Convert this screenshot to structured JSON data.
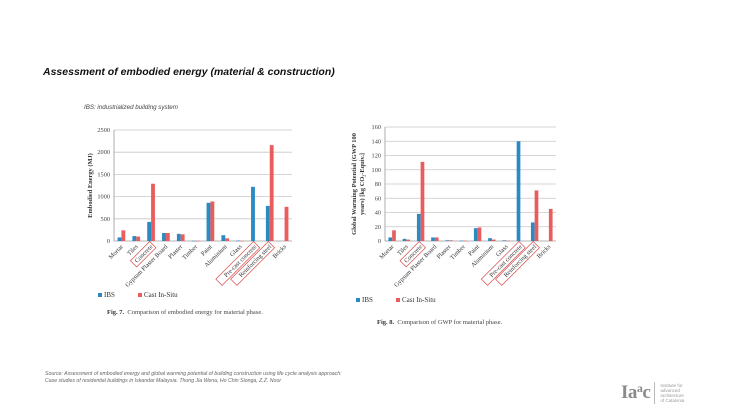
{
  "slide": {
    "title": "Assessment of embodied energy (material & construction)",
    "subnote": "IBS: industrialized building system",
    "source_line1": "Source: Assessment of embodied energy and global warming potential of building construction using life cycle analysis approach:",
    "source_line2": " Case studies of residential buildings in Iskandar Malaysia. Thong Jia Wena, Ho Chin Sionga, Z.Z. Noor",
    "logo": {
      "mark_main": "Ia",
      "mark_sup1": "a",
      "mark_c": "c",
      "text_lines": [
        "Institute for",
        "advanced",
        "architecture",
        "of Catalonia"
      ]
    }
  },
  "colors": {
    "ibs": "#2a8ac4",
    "cast_in_situ": "#ea5d5d",
    "highlight_box": "#d94a4a",
    "grid": "#c8c8c8"
  },
  "chart_data": [
    {
      "type": "bar",
      "title": "",
      "caption_label": "Fig. 7.",
      "caption_text": "Comparison of embodied energy for material phase.",
      "xlabel": "",
      "ylabel": "Embodied Energy (MJ)",
      "ylim": [
        0,
        2500
      ],
      "yticks": [
        0,
        500,
        1000,
        1500,
        2000,
        2500
      ],
      "grid": true,
      "legend": "bottom-left",
      "categories": [
        "Mortar",
        "Tiles",
        "Concrete",
        "Gypsum Plaster Board",
        "Plaster",
        "Timber",
        "Paint",
        "Aluminium",
        "Glass",
        "Pre-cast concrete",
        "Reinforcing steel",
        "Bricks"
      ],
      "highlighted_categories": [
        "Concrete",
        "Pre-cast concrete",
        "Reinforcing steel"
      ],
      "series": [
        {
          "name": "IBS",
          "values": [
            80,
            110,
            430,
            180,
            160,
            5,
            860,
            130,
            10,
            1220,
            790,
            0
          ]
        },
        {
          "name": "Cast In-Situ",
          "values": [
            240,
            100,
            1290,
            180,
            150,
            5,
            890,
            60,
            5,
            0,
            2160,
            770
          ]
        }
      ]
    },
    {
      "type": "bar",
      "title": "",
      "caption_label": "Fig. 8.",
      "caption_text": "Comparison of GWP for material phase.",
      "xlabel": "",
      "ylabel": "Global Warming Potential (GWP 100 years) [kg CO₂-Equiv.]",
      "ylabel_line1": "Global Warming Potential (GWP 100",
      "ylabel_line2": "years) [kg CO₂-Equiv.]",
      "ylim": [
        0,
        160
      ],
      "yticks": [
        0,
        20,
        40,
        60,
        80,
        100,
        120,
        140,
        160
      ],
      "grid": true,
      "legend": "bottom-left",
      "categories": [
        "Mortar",
        "Tiles",
        "Concrete",
        "Gypsum Plaster Board",
        "Plaster",
        "Timber",
        "Paint",
        "Aluminium",
        "Glass",
        "Pre-cast concrete",
        "Reinforcing steel",
        "Bricks"
      ],
      "highlighted_categories": [
        "Concrete",
        "Pre-cast concrete",
        "Reinforcing steel"
      ],
      "series": [
        {
          "name": "IBS",
          "values": [
            5,
            3,
            38,
            5,
            1,
            0.5,
            18,
            4,
            1,
            140,
            26,
            0
          ]
        },
        {
          "name": "Cast In-Situ",
          "values": [
            15,
            2,
            111,
            5,
            1,
            0.5,
            19,
            2,
            0.5,
            0,
            71,
            45
          ]
        }
      ]
    }
  ]
}
